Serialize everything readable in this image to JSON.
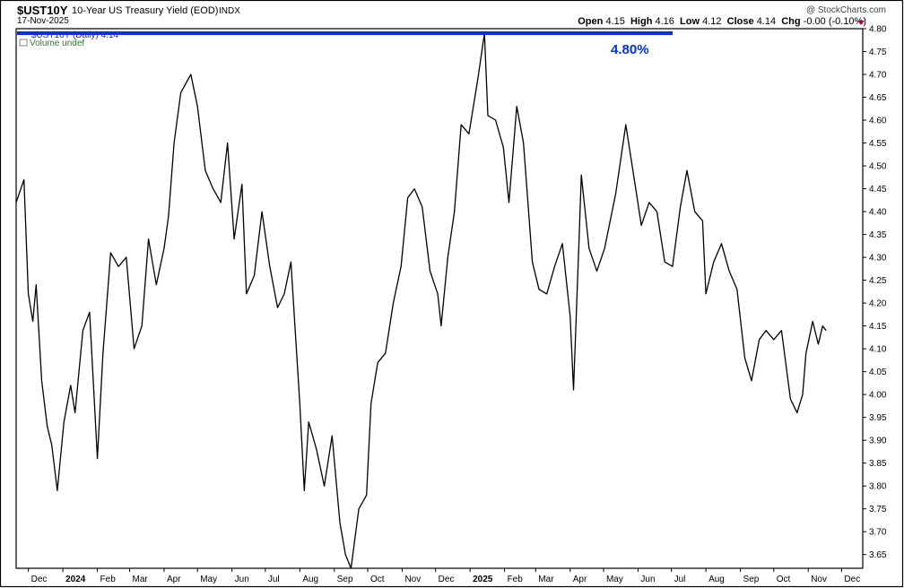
{
  "header": {
    "symbol": "$UST10Y",
    "description": "10-Year US Treasury Yield (EOD)",
    "price_type": "INDX",
    "date": "17-Nov-2025",
    "credit": "@ StockCharts.com",
    "open_label": "Open",
    "open": "4.15",
    "high_label": "High",
    "high": "4.16",
    "low_label": "Low",
    "low": "4.12",
    "close_label": "Close",
    "close": "4.14",
    "chg_label": "Chg",
    "chg": "-0.00 (-0.10%)"
  },
  "legend": {
    "series_label": "$UST10Y (Daily) 4.14",
    "volume_label": "Volume undef"
  },
  "annotation": {
    "text": "4.80%",
    "value": 4.8,
    "color": "#0033dd"
  },
  "colors": {
    "line": "#000000",
    "annotation": "#0033dd",
    "down": "#c0003c",
    "volume_label": "#2a7a2a"
  },
  "chart_data": {
    "type": "line",
    "title": "",
    "xlabel": "",
    "ylabel": "",
    "ylim": [
      3.62,
      4.8
    ],
    "x_range": [
      "2023-11-20",
      "2025-12-20"
    ],
    "grid": false,
    "y_ticks": [
      "3.65",
      "3.70",
      "3.75",
      "3.80",
      "3.85",
      "3.90",
      "3.95",
      "4.00",
      "4.05",
      "4.10",
      "4.15",
      "4.20",
      "4.25",
      "4.30",
      "4.35",
      "4.40",
      "4.45",
      "4.50",
      "4.55",
      "4.60",
      "4.65",
      "4.70",
      "4.75",
      "4.80"
    ],
    "x_ticks": [
      {
        "label": "Dec",
        "date": "2023-12-01",
        "bold": false
      },
      {
        "label": "2024",
        "date": "2024-01-01",
        "bold": true
      },
      {
        "label": "Feb",
        "date": "2024-02-01",
        "bold": false
      },
      {
        "label": "Mar",
        "date": "2024-03-01",
        "bold": false
      },
      {
        "label": "Apr",
        "date": "2024-04-01",
        "bold": false
      },
      {
        "label": "May",
        "date": "2024-05-01",
        "bold": false
      },
      {
        "label": "Jun",
        "date": "2024-06-01",
        "bold": false
      },
      {
        "label": "Jul",
        "date": "2024-07-01",
        "bold": false
      },
      {
        "label": "Aug",
        "date": "2024-08-01",
        "bold": false
      },
      {
        "label": "Sep",
        "date": "2024-09-01",
        "bold": false
      },
      {
        "label": "Oct",
        "date": "2024-10-01",
        "bold": false
      },
      {
        "label": "Nov",
        "date": "2024-11-01",
        "bold": false
      },
      {
        "label": "Dec",
        "date": "2024-12-01",
        "bold": false
      },
      {
        "label": "2025",
        "date": "2025-01-01",
        "bold": true
      },
      {
        "label": "Feb",
        "date": "2025-02-01",
        "bold": false
      },
      {
        "label": "Mar",
        "date": "2025-03-01",
        "bold": false
      },
      {
        "label": "Apr",
        "date": "2025-04-01",
        "bold": false
      },
      {
        "label": "May",
        "date": "2025-05-01",
        "bold": false
      },
      {
        "label": "Jun",
        "date": "2025-06-01",
        "bold": false
      },
      {
        "label": "Jul",
        "date": "2025-07-01",
        "bold": false
      },
      {
        "label": "Aug",
        "date": "2025-08-01",
        "bold": false
      },
      {
        "label": "Sep",
        "date": "2025-09-01",
        "bold": false
      },
      {
        "label": "Oct",
        "date": "2025-10-01",
        "bold": false
      },
      {
        "label": "Nov",
        "date": "2025-11-01",
        "bold": false
      },
      {
        "label": "Dec",
        "date": "2025-12-01",
        "bold": false
      }
    ],
    "series": [
      {
        "points": [
          [
            "2023-11-20",
            4.42
          ],
          [
            "2023-11-27",
            4.47
          ],
          [
            "2023-12-01",
            4.22
          ],
          [
            "2023-12-05",
            4.16
          ],
          [
            "2023-12-08",
            4.24
          ],
          [
            "2023-12-13",
            4.03
          ],
          [
            "2023-12-18",
            3.93
          ],
          [
            "2023-12-22",
            3.89
          ],
          [
            "2023-12-27",
            3.79
          ],
          [
            "2024-01-02",
            3.94
          ],
          [
            "2024-01-08",
            4.02
          ],
          [
            "2024-01-12",
            3.96
          ],
          [
            "2024-01-19",
            4.14
          ],
          [
            "2024-01-25",
            4.18
          ],
          [
            "2024-02-01",
            3.86
          ],
          [
            "2024-02-06",
            4.09
          ],
          [
            "2024-02-13",
            4.31
          ],
          [
            "2024-02-20",
            4.28
          ],
          [
            "2024-02-27",
            4.3
          ],
          [
            "2024-03-05",
            4.1
          ],
          [
            "2024-03-12",
            4.15
          ],
          [
            "2024-03-18",
            4.34
          ],
          [
            "2024-03-25",
            4.24
          ],
          [
            "2024-04-01",
            4.32
          ],
          [
            "2024-04-05",
            4.39
          ],
          [
            "2024-04-10",
            4.55
          ],
          [
            "2024-04-16",
            4.66
          ],
          [
            "2024-04-25",
            4.7
          ],
          [
            "2024-05-01",
            4.63
          ],
          [
            "2024-05-08",
            4.49
          ],
          [
            "2024-05-15",
            4.45
          ],
          [
            "2024-05-22",
            4.42
          ],
          [
            "2024-05-28",
            4.55
          ],
          [
            "2024-06-03",
            4.34
          ],
          [
            "2024-06-10",
            4.46
          ],
          [
            "2024-06-14",
            4.22
          ],
          [
            "2024-06-21",
            4.26
          ],
          [
            "2024-06-28",
            4.4
          ],
          [
            "2024-07-05",
            4.28
          ],
          [
            "2024-07-12",
            4.19
          ],
          [
            "2024-07-18",
            4.22
          ],
          [
            "2024-07-24",
            4.29
          ],
          [
            "2024-08-01",
            3.98
          ],
          [
            "2024-08-05",
            3.79
          ],
          [
            "2024-08-09",
            3.94
          ],
          [
            "2024-08-16",
            3.88
          ],
          [
            "2024-08-23",
            3.8
          ],
          [
            "2024-08-30",
            3.91
          ],
          [
            "2024-09-06",
            3.72
          ],
          [
            "2024-09-11",
            3.65
          ],
          [
            "2024-09-16",
            3.62
          ],
          [
            "2024-09-23",
            3.75
          ],
          [
            "2024-09-30",
            3.78
          ],
          [
            "2024-10-04",
            3.98
          ],
          [
            "2024-10-10",
            4.07
          ],
          [
            "2024-10-17",
            4.09
          ],
          [
            "2024-10-24",
            4.2
          ],
          [
            "2024-10-31",
            4.28
          ],
          [
            "2024-11-06",
            4.43
          ],
          [
            "2024-11-12",
            4.45
          ],
          [
            "2024-11-19",
            4.41
          ],
          [
            "2024-11-26",
            4.27
          ],
          [
            "2024-12-03",
            4.22
          ],
          [
            "2024-12-06",
            4.15
          ],
          [
            "2024-12-12",
            4.3
          ],
          [
            "2024-12-18",
            4.4
          ],
          [
            "2024-12-24",
            4.59
          ],
          [
            "2024-12-31",
            4.57
          ],
          [
            "2025-01-08",
            4.69
          ],
          [
            "2025-01-14",
            4.79
          ],
          [
            "2025-01-17",
            4.61
          ],
          [
            "2025-01-24",
            4.6
          ],
          [
            "2025-01-31",
            4.54
          ],
          [
            "2025-02-05",
            4.42
          ],
          [
            "2025-02-12",
            4.63
          ],
          [
            "2025-02-18",
            4.55
          ],
          [
            "2025-02-26",
            4.29
          ],
          [
            "2025-03-04",
            4.23
          ],
          [
            "2025-03-11",
            4.22
          ],
          [
            "2025-03-18",
            4.28
          ],
          [
            "2025-03-25",
            4.33
          ],
          [
            "2025-04-01",
            4.17
          ],
          [
            "2025-04-04",
            4.01
          ],
          [
            "2025-04-09",
            4.34
          ],
          [
            "2025-04-11",
            4.48
          ],
          [
            "2025-04-18",
            4.32
          ],
          [
            "2025-04-25",
            4.27
          ],
          [
            "2025-05-02",
            4.32
          ],
          [
            "2025-05-12",
            4.44
          ],
          [
            "2025-05-21",
            4.59
          ],
          [
            "2025-05-28",
            4.48
          ],
          [
            "2025-06-04",
            4.37
          ],
          [
            "2025-06-11",
            4.42
          ],
          [
            "2025-06-18",
            4.4
          ],
          [
            "2025-06-25",
            4.29
          ],
          [
            "2025-07-02",
            4.28
          ],
          [
            "2025-07-09",
            4.41
          ],
          [
            "2025-07-15",
            4.49
          ],
          [
            "2025-07-22",
            4.4
          ],
          [
            "2025-07-29",
            4.38
          ],
          [
            "2025-08-01",
            4.22
          ],
          [
            "2025-08-08",
            4.29
          ],
          [
            "2025-08-15",
            4.33
          ],
          [
            "2025-08-22",
            4.27
          ],
          [
            "2025-08-29",
            4.23
          ],
          [
            "2025-09-05",
            4.08
          ],
          [
            "2025-09-11",
            4.03
          ],
          [
            "2025-09-18",
            4.12
          ],
          [
            "2025-09-24",
            4.14
          ],
          [
            "2025-10-01",
            4.12
          ],
          [
            "2025-10-08",
            4.14
          ],
          [
            "2025-10-16",
            3.99
          ],
          [
            "2025-10-22",
            3.96
          ],
          [
            "2025-10-27",
            4.0
          ],
          [
            "2025-10-30",
            4.09
          ],
          [
            "2025-11-05",
            4.16
          ],
          [
            "2025-11-10",
            4.11
          ],
          [
            "2025-11-14",
            4.15
          ],
          [
            "2025-11-17",
            4.14
          ]
        ]
      }
    ]
  }
}
